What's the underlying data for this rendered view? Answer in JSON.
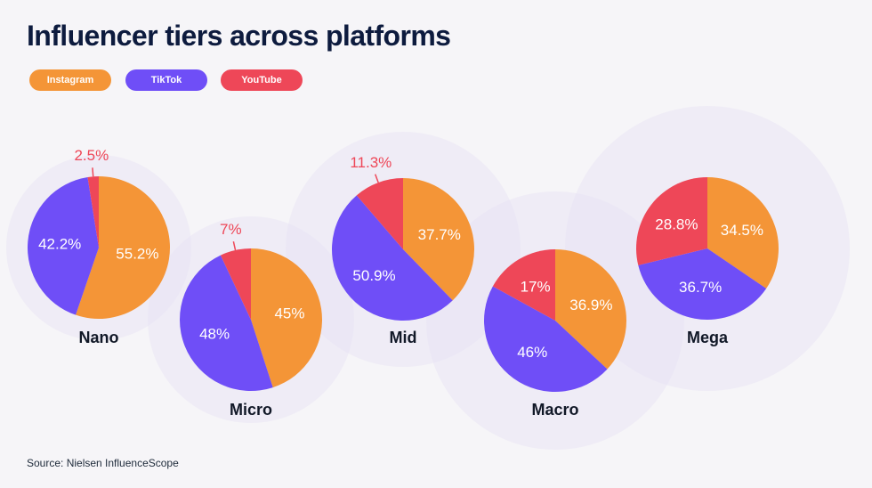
{
  "title": "Influencer tiers across platforms",
  "source": "Source: Nielsen InfluenceScope",
  "colors": {
    "instagram": "#f49537",
    "tiktok": "#6f4ef7",
    "youtube": "#ee4758",
    "halo": "#e7e3f5",
    "label_dark": "#111827"
  },
  "legend": [
    {
      "label": "Instagram",
      "color": "#f49537"
    },
    {
      "label": "TikTok",
      "color": "#6f4ef7"
    },
    {
      "label": "YouTube",
      "color": "#ee4758"
    }
  ],
  "chart_data": {
    "type": "pie",
    "series_names": [
      "Instagram",
      "TikTok",
      "YouTube"
    ],
    "pies": [
      {
        "name": "Nano",
        "values": [
          55.2,
          42.2,
          2.5
        ],
        "labels": [
          "55.2%",
          "42.2%",
          "2.5%"
        ]
      },
      {
        "name": "Micro",
        "values": [
          45,
          48,
          7
        ],
        "labels": [
          "45%",
          "48%",
          "7%"
        ]
      },
      {
        "name": "Mid",
        "values": [
          37.7,
          50.9,
          11.3
        ],
        "labels": [
          "37.7%",
          "50.9%",
          "11.3%"
        ]
      },
      {
        "name": "Macro",
        "values": [
          36.9,
          46,
          17
        ],
        "labels": [
          "36.9%",
          "46%",
          "17%"
        ]
      },
      {
        "name": "Mega",
        "values": [
          34.5,
          36.7,
          28.8
        ],
        "labels": [
          "34.5%",
          "36.7%",
          "28.8%"
        ]
      }
    ]
  }
}
